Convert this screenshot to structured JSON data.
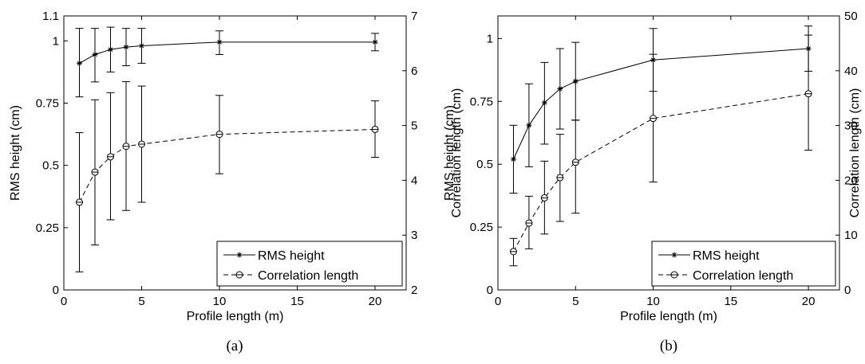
{
  "chart_data": [
    {
      "type": "line",
      "caption": "(a)",
      "xlabel": "Profile length (m)",
      "ylabel_left": "RMS height (cm)",
      "ylabel_right": "Correlation length (cm)",
      "xlim": [
        0,
        22
      ],
      "ylim_left": [
        0,
        1.1
      ],
      "ylim_right": [
        2,
        7
      ],
      "xticks": [
        0,
        5,
        10,
        15,
        20
      ],
      "yticks_left": [
        "0",
        "0.25",
        "0.5",
        "0.75",
        "1",
        "1.1"
      ],
      "yticks_left_values": [
        0,
        0.25,
        0.5,
        0.75,
        1,
        1.1
      ],
      "yticks_right": [
        2,
        3,
        4,
        5,
        6,
        7
      ],
      "grid": false,
      "legend_position": "bottom-right",
      "series": [
        {
          "name": "RMS height",
          "axis": "left",
          "marker": "star",
          "line_style": "solid",
          "x": [
            1,
            2,
            3,
            4,
            5,
            10,
            20
          ],
          "y": [
            0.91,
            0.945,
            0.965,
            0.975,
            0.98,
            0.995,
            0.995
          ],
          "err_low": [
            0.775,
            0.835,
            0.875,
            0.9,
            0.91,
            0.945,
            0.96
          ],
          "err_high": [
            1.05,
            1.05,
            1.055,
            1.05,
            1.05,
            1.04,
            1.03
          ]
        },
        {
          "name": "Correlation length",
          "axis": "right",
          "marker": "circle",
          "line_style": "dashed",
          "x": [
            1,
            2,
            3,
            4,
            5,
            10,
            20
          ],
          "y": [
            3.6,
            4.15,
            4.43,
            4.62,
            4.66,
            4.84,
            4.93
          ],
          "err_low": [
            2.33,
            2.82,
            3.28,
            3.45,
            3.6,
            4.12,
            4.42
          ],
          "err_high": [
            4.87,
            5.47,
            5.6,
            5.8,
            5.72,
            5.55,
            5.45
          ]
        }
      ]
    },
    {
      "type": "line",
      "caption": "(b)",
      "xlabel": "Profile length (m)",
      "ylabel_left": "RMS height (cm)",
      "ylabel_right": "Correlation length (cm)",
      "xlim": [
        0,
        22
      ],
      "ylim_left": [
        0,
        1.09
      ],
      "ylim_right": [
        0,
        50
      ],
      "xticks": [
        0,
        5,
        10,
        15,
        20
      ],
      "yticks_left": [
        "0",
        "0.25",
        "0.5",
        "0.75",
        "1"
      ],
      "yticks_left_values": [
        0,
        0.25,
        0.5,
        0.75,
        1
      ],
      "yticks_right": [
        0,
        10,
        20,
        30,
        40,
        50
      ],
      "grid": false,
      "legend_position": "bottom-right",
      "series": [
        {
          "name": "RMS height",
          "axis": "left",
          "marker": "star",
          "line_style": "solid",
          "x": [
            1,
            2,
            3,
            4,
            5,
            10,
            20
          ],
          "y": [
            0.52,
            0.655,
            0.745,
            0.8,
            0.83,
            0.915,
            0.96
          ],
          "err_low": [
            0.385,
            0.49,
            0.58,
            0.64,
            0.675,
            0.79,
            0.87
          ],
          "err_high": [
            0.655,
            0.82,
            0.905,
            0.96,
            0.985,
            1.04,
            1.05
          ]
        },
        {
          "name": "Correlation length",
          "axis": "right",
          "marker": "circle",
          "line_style": "dashed",
          "x": [
            1,
            2,
            3,
            4,
            5,
            10,
            20
          ],
          "y": [
            7,
            12.2,
            16.8,
            20.5,
            23.3,
            31.3,
            35.8
          ],
          "err_low": [
            4.4,
            7.5,
            10.2,
            12.5,
            14,
            19.7,
            25.5
          ],
          "err_high": [
            9.4,
            17.1,
            23.5,
            28.4,
            31,
            43,
            46.5
          ]
        }
      ]
    }
  ]
}
